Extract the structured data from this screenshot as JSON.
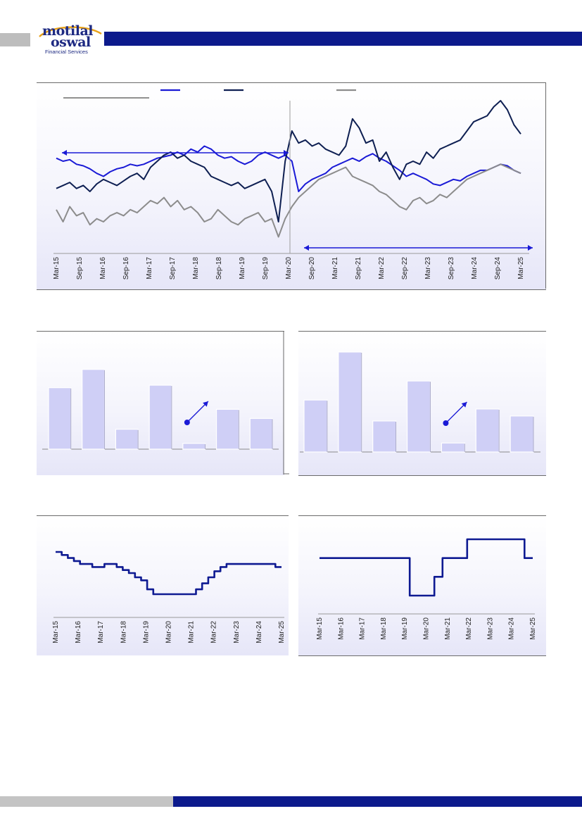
{
  "header": {
    "brand_line_1": "motilal",
    "brand_line_2": "oswal",
    "brand_sub": "Financial Services"
  },
  "colors": {
    "brand_blue": "#0c1a8c",
    "series_blue": "#1a1ad6",
    "series_navy": "#0e1f52",
    "series_gray": "#8c8c8c",
    "bar_fill": "#cfcff6",
    "panel_border": "#6a6a6a"
  },
  "chart_data": [
    {
      "type": "line",
      "x_ticks": [
        "Mar-15",
        "Sep-15",
        "Mar-16",
        "Sep-16",
        "Mar-17",
        "Sep-17",
        "Mar-18",
        "Sep-18",
        "Mar-19",
        "Sep-19",
        "Mar-20",
        "Sep-20",
        "Mar-21",
        "Sep-21",
        "Mar-22",
        "Sep-22",
        "Mar-23",
        "Sep-23",
        "Mar-24",
        "Sep-24",
        "Mar-25"
      ],
      "grid": false,
      "annotations": [
        "double-headed arrow over Mar-15 to Mar-20",
        "vertical divider at Mar-20",
        "double-headed arrow over Mar-20 to Mar-25"
      ],
      "series": [
        {
          "color": "#1a1ad6",
          "values": [
            62,
            60,
            61,
            58,
            57,
            55,
            52,
            50,
            53,
            55,
            56,
            58,
            57,
            58,
            60,
            62,
            63,
            64,
            66,
            64,
            68,
            66,
            70,
            68,
            64,
            62,
            63,
            60,
            58,
            60,
            64,
            66,
            64,
            62,
            64,
            60,
            40,
            45,
            48,
            50,
            52,
            56,
            58,
            60,
            62,
            60,
            63,
            65,
            62,
            60,
            57,
            54,
            50,
            52,
            50,
            48,
            45,
            44,
            46,
            48,
            47,
            50,
            52,
            54,
            54,
            56,
            58,
            57,
            54,
            52
          ]
        },
        {
          "color": "#0e1f52",
          "values": [
            42,
            44,
            46,
            42,
            44,
            40,
            45,
            48,
            46,
            44,
            47,
            50,
            52,
            48,
            56,
            60,
            64,
            66,
            62,
            64,
            60,
            58,
            56,
            50,
            48,
            46,
            44,
            46,
            42,
            44,
            46,
            48,
            40,
            20,
            60,
            80,
            72,
            74,
            70,
            72,
            68,
            66,
            64,
            70,
            88,
            82,
            72,
            74,
            60,
            66,
            56,
            48,
            58,
            60,
            58,
            66,
            62,
            68,
            70,
            72,
            74,
            80,
            86,
            88,
            90,
            96,
            100,
            94,
            84,
            78
          ]
        },
        {
          "color": "#8c8c8c",
          "values": [
            28,
            20,
            30,
            24,
            26,
            18,
            22,
            20,
            24,
            26,
            24,
            28,
            26,
            30,
            34,
            32,
            36,
            30,
            34,
            28,
            30,
            26,
            20,
            22,
            28,
            24,
            20,
            18,
            22,
            24,
            26,
            20,
            22,
            10,
            22,
            30,
            36,
            40,
            44,
            48,
            50,
            52,
            54,
            56,
            50,
            48,
            46,
            44,
            40,
            38,
            34,
            30,
            28,
            34,
            36,
            32,
            34,
            38,
            36,
            40,
            44,
            48,
            50,
            52,
            54,
            56,
            58,
            56,
            54,
            52
          ]
        }
      ]
    },
    {
      "type": "bar",
      "categories": [
        "",
        "",
        "",
        "",
        "",
        "",
        ""
      ],
      "values": [
        74,
        96,
        24,
        77,
        7,
        48,
        37
      ],
      "annotations": [
        "arrow pointing up-right between bar 5 and bar 6"
      ]
    },
    {
      "type": "bar",
      "categories": [
        "",
        "",
        "",
        "",
        "",
        "",
        ""
      ],
      "values": [
        52,
        100,
        31,
        71,
        9,
        43,
        36
      ],
      "annotations": [
        "arrow pointing up-right between bar 5 and bar 6"
      ]
    },
    {
      "type": "line",
      "x_ticks": [
        "Mar-15",
        "Mar-16",
        "Mar-17",
        "Mar-18",
        "Mar-19",
        "Mar-20",
        "Mar-21",
        "Mar-22",
        "Mar-23",
        "Mar-24",
        "Mar-25"
      ],
      "grid": false,
      "series": [
        {
          "color": "#0e1a92",
          "values": [
            7.5,
            7.25,
            7.0,
            6.75,
            6.5,
            6.5,
            6.25,
            6.25,
            6.5,
            6.5,
            6.25,
            6.0,
            5.75,
            5.4,
            5.15,
            4.4,
            4.0,
            4.0,
            4.0,
            4.0,
            4.0,
            4.0,
            4.0,
            4.4,
            4.9,
            5.4,
            5.9,
            6.25,
            6.5,
            6.5,
            6.5,
            6.5,
            6.5,
            6.5,
            6.5,
            6.5,
            6.25
          ]
        }
      ]
    },
    {
      "type": "line",
      "x_ticks": [
        "Mar-15",
        "Mar-16",
        "Mar-17",
        "Mar-18",
        "Mar-19",
        "Mar-20",
        "Mar-21",
        "Mar-22",
        "Mar-23",
        "Mar-24",
        "Mar-25"
      ],
      "grid": false,
      "series": [
        {
          "color": "#0e1a92",
          "values": [
            4.0,
            4.0,
            4.0,
            4.0,
            4.0,
            4.0,
            4.0,
            4.0,
            4.0,
            4.0,
            4.0,
            3.0,
            3.0,
            3.0,
            3.5,
            4.0,
            4.0,
            4.0,
            4.5,
            4.5,
            4.5,
            4.5,
            4.5,
            4.5,
            4.5,
            4.0
          ]
        }
      ]
    }
  ]
}
